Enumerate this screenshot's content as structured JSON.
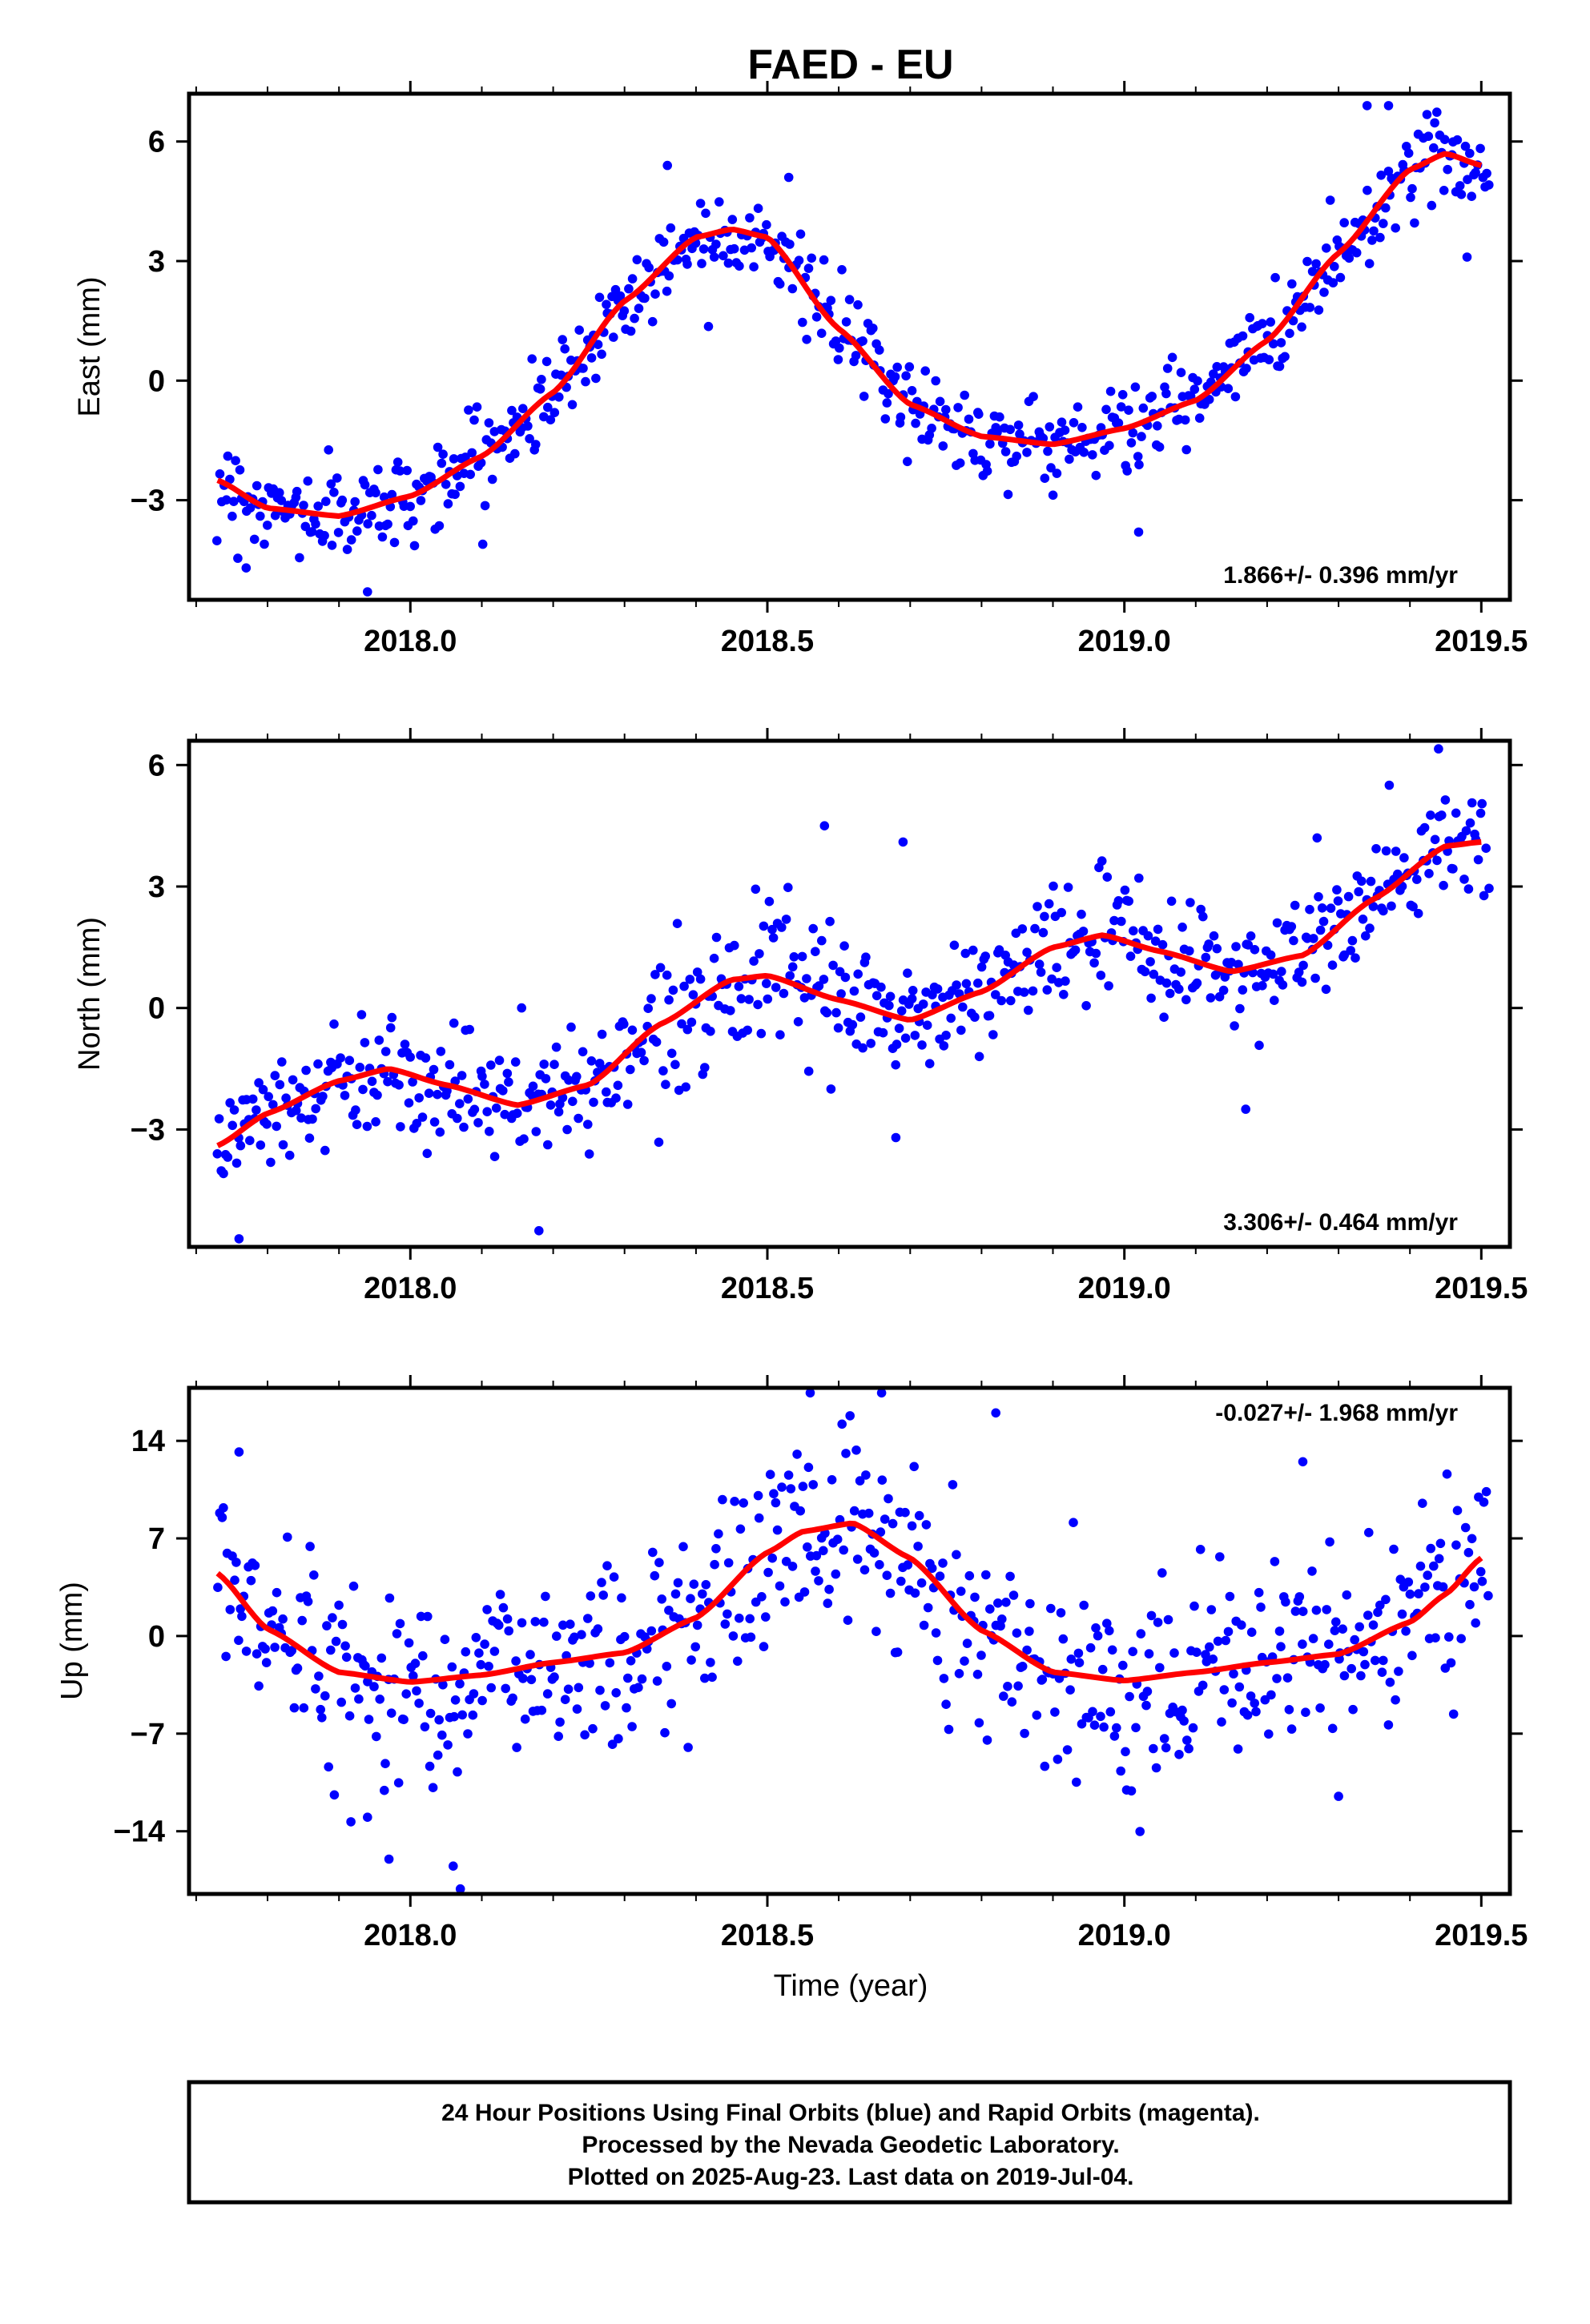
{
  "title": "FAED - EU",
  "footer": {
    "line1": "24 Hour Positions Using Final Orbits (blue) and Rapid Orbits (magenta).",
    "line2": "Processed by the Nevada Geodetic Laboratory.",
    "line3": "Plotted on 2025-Aug-23. Last data on 2019-Jul-04."
  },
  "colors": {
    "points": "#0000ff",
    "fit": "#ff0000",
    "frame": "#000000"
  },
  "chart_data": [
    {
      "type": "scatter",
      "component": "east",
      "ylabel": "East (mm)",
      "xlim": [
        2017.69,
        2019.54
      ],
      "ylim": [
        -5.5,
        7.2
      ],
      "x_ticks": [
        "2018.0",
        "2018.5",
        "2019.0",
        "2019.5"
      ],
      "y_ticks": [
        "−3",
        "0",
        "3",
        "6"
      ],
      "y_tick_values": [
        -3,
        0,
        3,
        6
      ],
      "velocity_label": "1.866+/- 0.396 mm/yr",
      "fit_curve": {
        "x": [
          2017.73,
          2017.8,
          2017.9,
          2018.0,
          2018.1,
          2018.2,
          2018.3,
          2018.4,
          2018.45,
          2018.5,
          2018.6,
          2018.7,
          2018.8,
          2018.9,
          2019.0,
          2019.1,
          2019.2,
          2019.3,
          2019.4,
          2019.45,
          2019.5
        ],
        "y": [
          -2.5,
          -3.2,
          -3.4,
          -2.9,
          -1.9,
          -0.3,
          2.0,
          3.6,
          3.8,
          3.6,
          1.3,
          -0.6,
          -1.4,
          -1.6,
          -1.2,
          -0.5,
          1.0,
          3.2,
          5.3,
          5.7,
          5.4
        ]
      },
      "scatter_model": {
        "x_start": 2017.73,
        "x_end": 2019.51,
        "count": 620,
        "scatter_sd": 0.55,
        "outliers": {
          "x": [
            2017.94,
            2017.77,
            2018.36,
            2018.53,
            2019.02,
            2019.34,
            2019.37,
            2019.48
          ],
          "y": [
            -5.3,
            -4.7,
            5.4,
            5.1,
            -3.8,
            6.9,
            6.9,
            3.1
          ]
        }
      }
    },
    {
      "type": "scatter",
      "component": "north",
      "ylabel": "North (mm)",
      "xlim": [
        2017.69,
        2019.54
      ],
      "ylim": [
        -5.9,
        6.6
      ],
      "x_ticks": [
        "2018.0",
        "2018.5",
        "2019.0",
        "2019.5"
      ],
      "y_ticks": [
        "−3",
        "0",
        "3",
        "6"
      ],
      "y_tick_values": [
        -3,
        0,
        3,
        6
      ],
      "velocity_label": "3.306+/- 0.464 mm/yr",
      "fit_curve": {
        "x": [
          2017.73,
          2017.8,
          2017.9,
          2017.97,
          2018.05,
          2018.15,
          2018.25,
          2018.35,
          2018.45,
          2018.5,
          2018.6,
          2018.7,
          2018.8,
          2018.9,
          2018.97,
          2019.05,
          2019.15,
          2019.25,
          2019.35,
          2019.45,
          2019.5
        ],
        "y": [
          -3.4,
          -2.6,
          -1.8,
          -1.5,
          -1.9,
          -2.4,
          -1.9,
          -0.4,
          0.7,
          0.8,
          0.2,
          -0.3,
          0.4,
          1.5,
          1.8,
          1.4,
          0.9,
          1.3,
          2.7,
          4.0,
          4.1
        ]
      },
      "scatter_model": {
        "x_start": 2017.73,
        "x_end": 2019.51,
        "count": 620,
        "scatter_sd": 0.75,
        "outliers": {
          "x": [
            2017.76,
            2018.18,
            2018.58,
            2018.69,
            2018.68,
            2019.27,
            2019.44,
            2019.17
          ],
          "y": [
            -5.7,
            -5.5,
            4.5,
            4.1,
            -3.2,
            4.2,
            6.4,
            -2.5
          ]
        }
      }
    },
    {
      "type": "scatter",
      "component": "up",
      "ylabel": "Up (mm)",
      "xlabel": "Time (year)",
      "xlim": [
        2017.69,
        2019.54
      ],
      "ylim": [
        -18.5,
        17.8
      ],
      "x_ticks": [
        "2018.0",
        "2018.5",
        "2019.0",
        "2019.5"
      ],
      "y_ticks": [
        "−14",
        "−7",
        "0",
        "7",
        "14"
      ],
      "y_tick_values": [
        -14,
        -7,
        0,
        7,
        14
      ],
      "velocity_label": "-0.027+/- 1.968 mm/yr",
      "fit_curve": {
        "x": [
          2017.73,
          2017.8,
          2017.9,
          2018.0,
          2018.1,
          2018.2,
          2018.3,
          2018.4,
          2018.5,
          2018.55,
          2018.62,
          2018.7,
          2018.8,
          2018.9,
          2019.0,
          2019.1,
          2019.2,
          2019.3,
          2019.4,
          2019.45,
          2019.5
        ],
        "y": [
          4.5,
          0.5,
          -2.6,
          -3.3,
          -2.8,
          -1.9,
          -1.2,
          1.3,
          6.0,
          7.5,
          8.1,
          5.6,
          0.4,
          -2.6,
          -3.2,
          -2.6,
          -1.9,
          -1.3,
          1.0,
          3.0,
          5.6
        ]
      },
      "scatter_model": {
        "x_start": 2017.73,
        "x_end": 2019.51,
        "count": 620,
        "scatter_sd": 3.4,
        "outliers": {
          "x": [
            2017.76,
            2018.07,
            2018.06,
            2018.56,
            2018.66,
            2018.82,
            2019.25,
            2019.3,
            2017.94,
            2017.97
          ],
          "y": [
            13.2,
            -18.2,
            -16.5,
            17.5,
            17.9,
            16.0,
            12.5,
            -11.5,
            -13.0,
            -16.0
          ]
        }
      }
    }
  ]
}
